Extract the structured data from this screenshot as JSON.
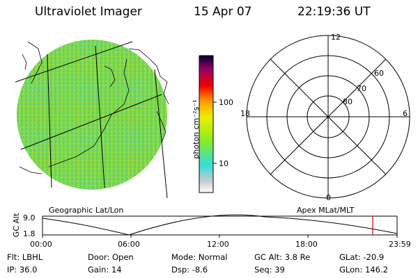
{
  "header": {
    "title": "Ultraviolet Imager",
    "date": "15 Apr 07",
    "time": "22:19:36 UT"
  },
  "geo_panel": {
    "label": "Geographic Lat/Lon"
  },
  "colorbar": {
    "unit_label": "photon cm⁻²s⁻¹",
    "ticks": [
      "100",
      "10"
    ],
    "scale": "log",
    "colors": [
      "#ffffff",
      "#cccccc",
      "#33dddd",
      "#88ee22",
      "#eeee00",
      "#ff9900",
      "#ee0000",
      "#990066",
      "#000033"
    ]
  },
  "polar_panel": {
    "label": "Apex MLat/MLT",
    "mlt_labels": {
      "top": "12",
      "left": "18",
      "right": "6",
      "bottom": "0"
    },
    "mlat_labels": [
      "60",
      "70",
      "80"
    ]
  },
  "orbit_plot": {
    "ylabel": "GC Alt",
    "yticks": [
      "9.0",
      "1.8"
    ],
    "xticks": [
      "00:00",
      "06:00",
      "12:00",
      "18:00",
      "23:59"
    ],
    "marker_color": "#dd0000"
  },
  "info": {
    "row1": [
      {
        "label": "Flt:",
        "value": "LBHL"
      },
      {
        "label": "Door:",
        "value": "Open"
      },
      {
        "label": "Mode:",
        "value": "Normal"
      },
      {
        "label": "GC Alt:",
        "value": "3.8 Re"
      },
      {
        "label": "GLat:",
        "value": "-20.9"
      }
    ],
    "row2": [
      {
        "label": "IP:",
        "value": "36.0"
      },
      {
        "label": "Gain:",
        "value": "14"
      },
      {
        "label": "Dsp:",
        "value": "-8.6"
      },
      {
        "label": "Seq:",
        "value": "39"
      },
      {
        "label": "GLon:",
        "value": "146.2"
      }
    ]
  }
}
